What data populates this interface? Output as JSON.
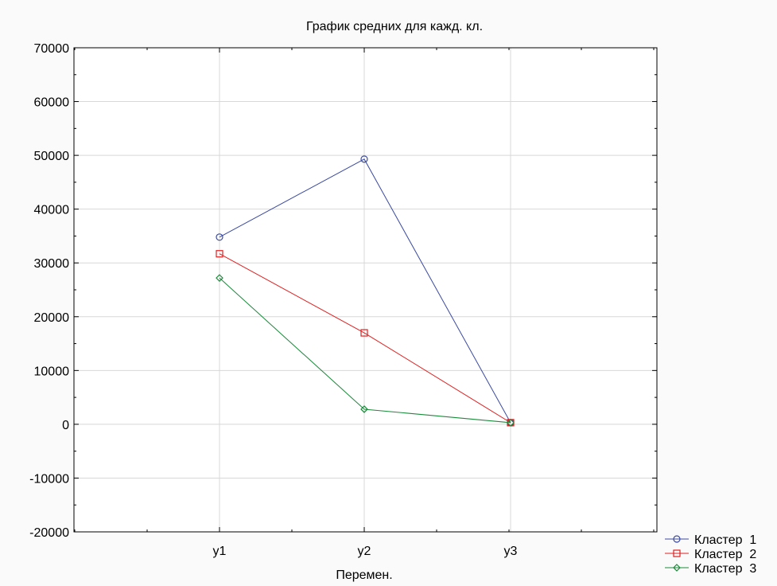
{
  "chart_data": {
    "type": "line",
    "title": "График средних для кажд. кл.",
    "xlabel": "Перемен.",
    "ylabel": "",
    "categories": [
      "y1",
      "y2",
      "y3"
    ],
    "ylim": [
      -20000,
      70000
    ],
    "yticks": [
      70000,
      60000,
      50000,
      40000,
      30000,
      20000,
      10000,
      0,
      -10000,
      -20000
    ],
    "grid": true,
    "legend_position": "bottom-right",
    "series": [
      {
        "name": "Кластер  1",
        "values": [
          34800,
          49300,
          300
        ],
        "color": "#3a4aa0",
        "marker": "circle"
      },
      {
        "name": "Кластер  2",
        "values": [
          31700,
          17000,
          300
        ],
        "color": "#e02020",
        "marker": "square"
      },
      {
        "name": "Кластер  3",
        "values": [
          27200,
          2800,
          300
        ],
        "color": "#1a8a3a",
        "marker": "diamond"
      }
    ]
  }
}
